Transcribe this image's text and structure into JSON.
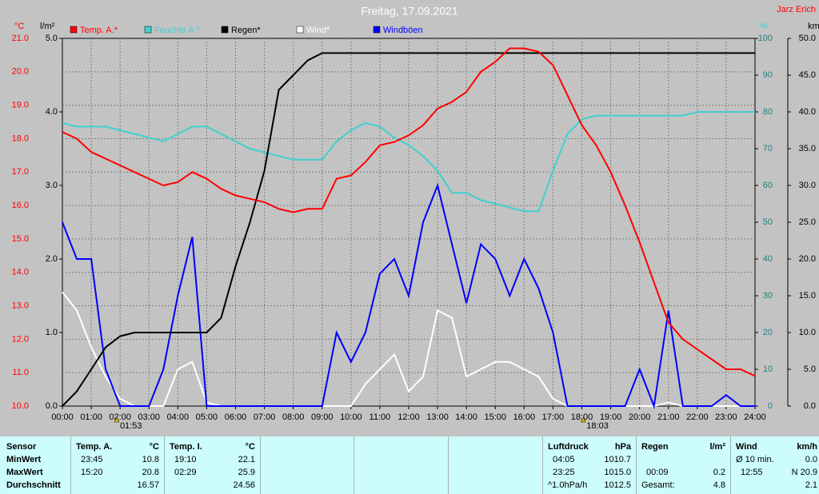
{
  "chart_data": {
    "type": "line",
    "title": "Freitag, 17.09.2021",
    "author": "Jarz Erich",
    "x": [
      0,
      0.5,
      1,
      1.5,
      2,
      2.5,
      3,
      3.5,
      4,
      4.5,
      5,
      5.5,
      6,
      6.5,
      7,
      7.5,
      8,
      8.5,
      9,
      9.5,
      10,
      10.5,
      11,
      11.5,
      12,
      12.5,
      13,
      13.5,
      14,
      14.5,
      15,
      15.5,
      16,
      16.5,
      17,
      17.5,
      18,
      18.5,
      19,
      19.5,
      20,
      20.5,
      21,
      21.5,
      22,
      22.5,
      23,
      23.5,
      24
    ],
    "xlim": [
      0,
      24
    ],
    "xticks": [
      {
        "value": 0,
        "label": "00:00"
      },
      {
        "value": 1,
        "label": "01:00"
      },
      {
        "value": 2,
        "label": "02:00"
      },
      {
        "value": 3,
        "label": "03:00"
      },
      {
        "value": 4,
        "label": "04:00"
      },
      {
        "value": 5,
        "label": "05:00"
      },
      {
        "value": 6,
        "label": "06:00"
      },
      {
        "value": 7,
        "label": "07:00"
      },
      {
        "value": 8,
        "label": "08:00"
      },
      {
        "value": 9,
        "label": "09:00"
      },
      {
        "value": 10,
        "label": "10:00"
      },
      {
        "value": 11,
        "label": "11:00"
      },
      {
        "value": 12,
        "label": "12:00"
      },
      {
        "value": 13,
        "label": "13:00"
      },
      {
        "value": 14,
        "label": "14:00"
      },
      {
        "value": 15,
        "label": "15:00"
      },
      {
        "value": 16,
        "label": "16:00"
      },
      {
        "value": 17,
        "label": "17:00"
      },
      {
        "value": 18,
        "label": "18:00"
      },
      {
        "value": 19,
        "label": "19:00"
      },
      {
        "value": 20,
        "label": "20:00"
      },
      {
        "value": 21,
        "label": "21:00"
      },
      {
        "value": 22,
        "label": "22:00"
      },
      {
        "value": 23,
        "label": "23:00"
      },
      {
        "value": 24,
        "label": "24:00"
      }
    ],
    "y_unit": "°C",
    "ylim": [
      10,
      21
    ],
    "yticks": [
      {
        "value": 10,
        "label": "10.0"
      },
      {
        "value": 11,
        "label": "11.0"
      },
      {
        "value": 12,
        "label": "12.0"
      },
      {
        "value": 13,
        "label": "13.0"
      },
      {
        "value": 14,
        "label": "14.0"
      },
      {
        "value": 15,
        "label": "15.0"
      },
      {
        "value": 16,
        "label": "16.0"
      },
      {
        "value": 17,
        "label": "17.0"
      },
      {
        "value": 18,
        "label": "18.0"
      },
      {
        "value": 19,
        "label": "19.0"
      },
      {
        "value": 20,
        "label": "20.0"
      },
      {
        "value": 21,
        "label": "21.0"
      }
    ],
    "y2_unit": "l/m²",
    "y2lim": [
      0,
      5
    ],
    "y2ticks": [
      {
        "value": 0,
        "label": "0.0"
      },
      {
        "value": 1,
        "label": "1.0"
      },
      {
        "value": 2,
        "label": "2.0"
      },
      {
        "value": 3,
        "label": "3.0"
      },
      {
        "value": 4,
        "label": "4.0"
      },
      {
        "value": 5,
        "label": "5.0"
      }
    ],
    "y3_unit": "%",
    "y3lim": [
      0,
      100
    ],
    "y3ticks": [
      0,
      10,
      20,
      30,
      40,
      50,
      60,
      70,
      80,
      90,
      100
    ],
    "y4_unit": "km/h",
    "y4lim": [
      0,
      50
    ],
    "y4ticks": [
      {
        "value": 0,
        "label": "0.0"
      },
      {
        "value": 5,
        "label": "5.0"
      },
      {
        "value": 10,
        "label": "10.0"
      },
      {
        "value": 15,
        "label": "15.0"
      },
      {
        "value": 20,
        "label": "20.0"
      },
      {
        "value": 25,
        "label": "25.0"
      },
      {
        "value": 30,
        "label": "30.0"
      },
      {
        "value": 35,
        "label": "35.0"
      },
      {
        "value": 40,
        "label": "40.0"
      },
      {
        "value": 45,
        "label": "45.0"
      },
      {
        "value": 50,
        "label": "50.0"
      }
    ],
    "grid": true,
    "annotations": [
      {
        "x": 1.883,
        "label": "01:53"
      },
      {
        "x": 18.05,
        "label": "18:03"
      }
    ],
    "series": [
      {
        "name": "Temp. A.*",
        "color": "#ff0000",
        "axis": "y",
        "values": [
          18.2,
          18.0,
          17.6,
          17.4,
          17.2,
          17.0,
          16.8,
          16.6,
          16.7,
          17.0,
          16.8,
          16.5,
          16.3,
          16.2,
          16.1,
          15.9,
          15.8,
          15.9,
          15.9,
          16.8,
          16.9,
          17.3,
          17.8,
          17.9,
          18.1,
          18.4,
          18.9,
          19.1,
          19.4,
          20.0,
          20.3,
          20.7,
          20.7,
          20.6,
          20.2,
          19.3,
          18.4,
          17.8,
          17.0,
          16.0,
          14.9,
          13.7,
          12.5,
          12.0,
          11.7,
          11.4,
          11.1,
          11.1,
          10.9
        ]
      },
      {
        "name": "Feuchte A.*",
        "color": "#40d0d0",
        "axis": "y3",
        "values": [
          77,
          76,
          76,
          76,
          75,
          74,
          73,
          72,
          74,
          76,
          76,
          74,
          72,
          70,
          69,
          68,
          67,
          67,
          67,
          72,
          75,
          77,
          76,
          73,
          71,
          68,
          64,
          58,
          58,
          56,
          55,
          54,
          53,
          53,
          64,
          74,
          78,
          79,
          79,
          79,
          79,
          79,
          79,
          79,
          80,
          80,
          80,
          80,
          80
        ]
      },
      {
        "name": "Regen*",
        "color": "#000000",
        "axis": "y2",
        "values": [
          0,
          0.2,
          0.5,
          0.8,
          0.95,
          1.0,
          1.0,
          1.0,
          1.0,
          1.0,
          1.0,
          1.2,
          1.9,
          2.5,
          3.2,
          4.3,
          4.5,
          4.7,
          4.8,
          4.8,
          4.8,
          4.8,
          4.8,
          4.8,
          4.8,
          4.8,
          4.8,
          4.8,
          4.8,
          4.8,
          4.8,
          4.8,
          4.8,
          4.8,
          4.8,
          4.8,
          4.8,
          4.8,
          4.8,
          4.8,
          4.8,
          4.8,
          4.8,
          4.8,
          4.8,
          4.8,
          4.8,
          4.8,
          4.8
        ]
      },
      {
        "name": "Wind*",
        "color": "#ffffff",
        "axis": "y4",
        "values": [
          15.5,
          13,
          8,
          4,
          1,
          0,
          0,
          0,
          5,
          6,
          0.5,
          0,
          0,
          0,
          0,
          0,
          0,
          0,
          0,
          0,
          0,
          3,
          5,
          7,
          2,
          4,
          13,
          12,
          4,
          5,
          6,
          6,
          5,
          4,
          1,
          0,
          0,
          0,
          0,
          0,
          0,
          0,
          0.5,
          0,
          0,
          0,
          0,
          0,
          0
        ]
      },
      {
        "name": "Windböen",
        "color": "#0000ff",
        "axis": "y4",
        "values": [
          25,
          20,
          20,
          5,
          0,
          0,
          0,
          5,
          15,
          23,
          0,
          0,
          0,
          0,
          0,
          0,
          0,
          0,
          0,
          10,
          6,
          10,
          18,
          20,
          15,
          25,
          30,
          22,
          14,
          22,
          20,
          15,
          20,
          16,
          10,
          0,
          0,
          0,
          0,
          0,
          5,
          0,
          13,
          0,
          0,
          0,
          1.5,
          0,
          0
        ]
      }
    ]
  },
  "summary": {
    "labels": {
      "sensor": "Sensor",
      "min": "MinWert",
      "max": "MaxWert",
      "avg": "Durchschnitt"
    },
    "temp_a": {
      "title": "Temp. A.",
      "unit": "°C",
      "min_time": "23:45",
      "min": "10.8",
      "max_time": "15:20",
      "max": "20.8",
      "avg": "16.57"
    },
    "temp_i": {
      "title": "Temp. I.",
      "unit": "°C",
      "min_time": "19:10",
      "min": "22.1",
      "max_time": "02:29",
      "max": "25.9",
      "avg": "24.56"
    },
    "pressure": {
      "title": "Luftdruck",
      "unit": "hPa",
      "min_time": "04:05",
      "min": "1010.7",
      "max_time": "23:25",
      "max": "1015.0",
      "trend": "^1.0hPa/h",
      "avg": "1012.5"
    },
    "rain": {
      "title": "Regen",
      "unit": "l/m²",
      "max_time": "00:09",
      "max": "0.2",
      "total_label": "Gesamt:",
      "total": "4.8"
    },
    "wind": {
      "title": "Wind",
      "unit": "km/h",
      "min_time": "Ø 10 min.",
      "min": "0.0",
      "max_time": "12:55",
      "max": "N 20.9",
      "avg": "2.1"
    }
  }
}
